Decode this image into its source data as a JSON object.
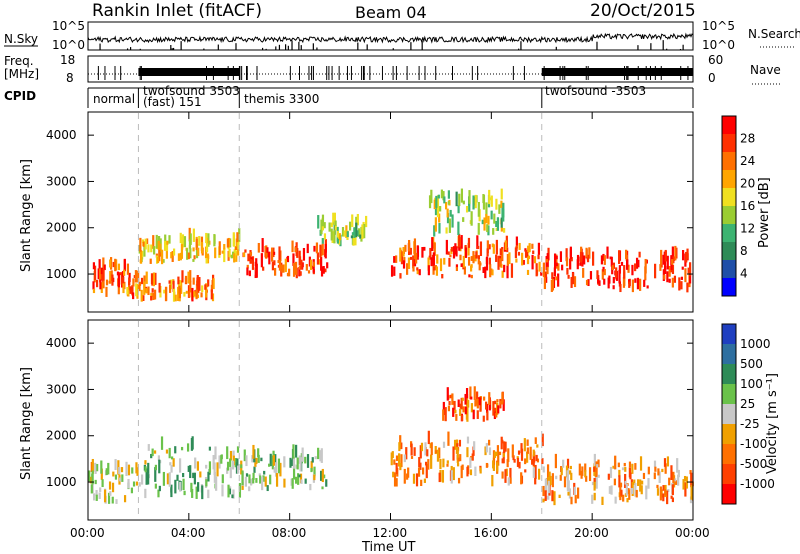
{
  "header": {
    "station": "Rankin Inlet (fitACF)",
    "beam": "Beam 04",
    "date": "20/Oct/2015"
  },
  "top_panels": {
    "nsky_label": "N.Sky",
    "nsky_ticks": [
      "10^5",
      "10^0"
    ],
    "nsearch_label": "N.Search",
    "nsearch_ticks": [
      "10^5",
      "10^0"
    ],
    "freq_label_1": "Freq.",
    "freq_label_2": "[MHz]",
    "freq_ticks": [
      "18",
      "8"
    ],
    "nave_label": "Nave",
    "nave_ticks": [
      "60",
      "0"
    ],
    "cpid_label": "CPID",
    "cpid_modes": [
      {
        "name": "normal",
        "start": 0.0
      },
      {
        "name": "twofsound 3503",
        "sub": "(fast) 151",
        "start": 2.0
      },
      {
        "name": "themis 3300",
        "start": 6.0
      },
      {
        "name": "twofsound -3503",
        "start": 18.0
      }
    ]
  },
  "power_panel": {
    "ylabel": "Slant Range [km]",
    "yticks": [
      "1000",
      "2000",
      "3000",
      "4000"
    ],
    "colorbar_label": "Power [dB]",
    "colorbar_ticks": [
      "4",
      "8",
      "12",
      "16",
      "20",
      "24",
      "28"
    ],
    "colors": [
      "#0000ff",
      "#1f4fa8",
      "#2e8b57",
      "#3cb371",
      "#9acd32",
      "#f0e020",
      "#ffa500",
      "#ff7000",
      "#ff3000",
      "#ff0000"
    ]
  },
  "velocity_panel": {
    "ylabel": "Slant Range [km]",
    "yticks": [
      "1000",
      "2000",
      "3000",
      "4000"
    ],
    "colorbar_label": "Velocity [m s⁻¹]",
    "colorbar_ticks": [
      "1000",
      "500",
      "100",
      "25",
      "-25",
      "-100",
      "-500",
      "-1000"
    ],
    "colors": [
      "#1f3fc0",
      "#2e6fa0",
      "#2e8b57",
      "#6ac24a",
      "#c8c8c8",
      "#f0a000",
      "#ff7000",
      "#ff4000",
      "#ff0000"
    ]
  },
  "xaxis": {
    "label": "Time UT",
    "ticks": [
      "00:00",
      "04:00",
      "08:00",
      "12:00",
      "16:00",
      "20:00",
      "00:00"
    ]
  },
  "chart_data": [
    {
      "type": "heatmap",
      "quantity": "Power",
      "x_range_hours": [
        0,
        24
      ],
      "y_range_km": [
        180,
        4500
      ],
      "color_range_db": [
        0,
        30
      ],
      "regions": [
        {
          "t": [
            0.0,
            2.0
          ],
          "range_km": [
            500,
            1300
          ],
          "value_db": 24
        },
        {
          "t": [
            1.5,
            5.0
          ],
          "range_km": [
            400,
            900
          ],
          "value_db": 22
        },
        {
          "t": [
            2.0,
            6.0
          ],
          "range_km": [
            1200,
            1800
          ],
          "value_db": 18
        },
        {
          "t": [
            6.0,
            9.5
          ],
          "range_km": [
            900,
            1600
          ],
          "value_db": 26
        },
        {
          "t": [
            9.0,
            11.0
          ],
          "range_km": [
            1600,
            2200
          ],
          "value_db": 14
        },
        {
          "t": [
            12.0,
            18.0
          ],
          "range_km": [
            900,
            1700
          ],
          "value_db": 24
        },
        {
          "t": [
            13.5,
            16.5
          ],
          "range_km": [
            1800,
            2800
          ],
          "value_db": 14
        },
        {
          "t": [
            18.0,
            24.0
          ],
          "range_km": [
            600,
            1500
          ],
          "value_db": 27
        }
      ]
    },
    {
      "type": "heatmap",
      "quantity": "Velocity",
      "x_range_hours": [
        0,
        24
      ],
      "y_range_km": [
        180,
        4500
      ],
      "color_range_ms": [
        -1000,
        1000
      ],
      "regions": [
        {
          "t": [
            0.0,
            2.0
          ],
          "range_km": [
            500,
            1400
          ],
          "value_ms": 0
        },
        {
          "t": [
            2.0,
            6.0
          ],
          "range_km": [
            600,
            1900
          ],
          "value_ms": 150
        },
        {
          "t": [
            6.0,
            9.5
          ],
          "range_km": [
            800,
            1700
          ],
          "value_ms": 150
        },
        {
          "t": [
            12.0,
            18.0
          ],
          "range_km": [
            900,
            2000
          ],
          "value_ms": -400
        },
        {
          "t": [
            14.0,
            16.5
          ],
          "range_km": [
            2300,
            2900
          ],
          "value_ms": -600
        },
        {
          "t": [
            18.0,
            24.0
          ],
          "range_km": [
            500,
            1500
          ],
          "value_ms": -300
        }
      ]
    }
  ]
}
